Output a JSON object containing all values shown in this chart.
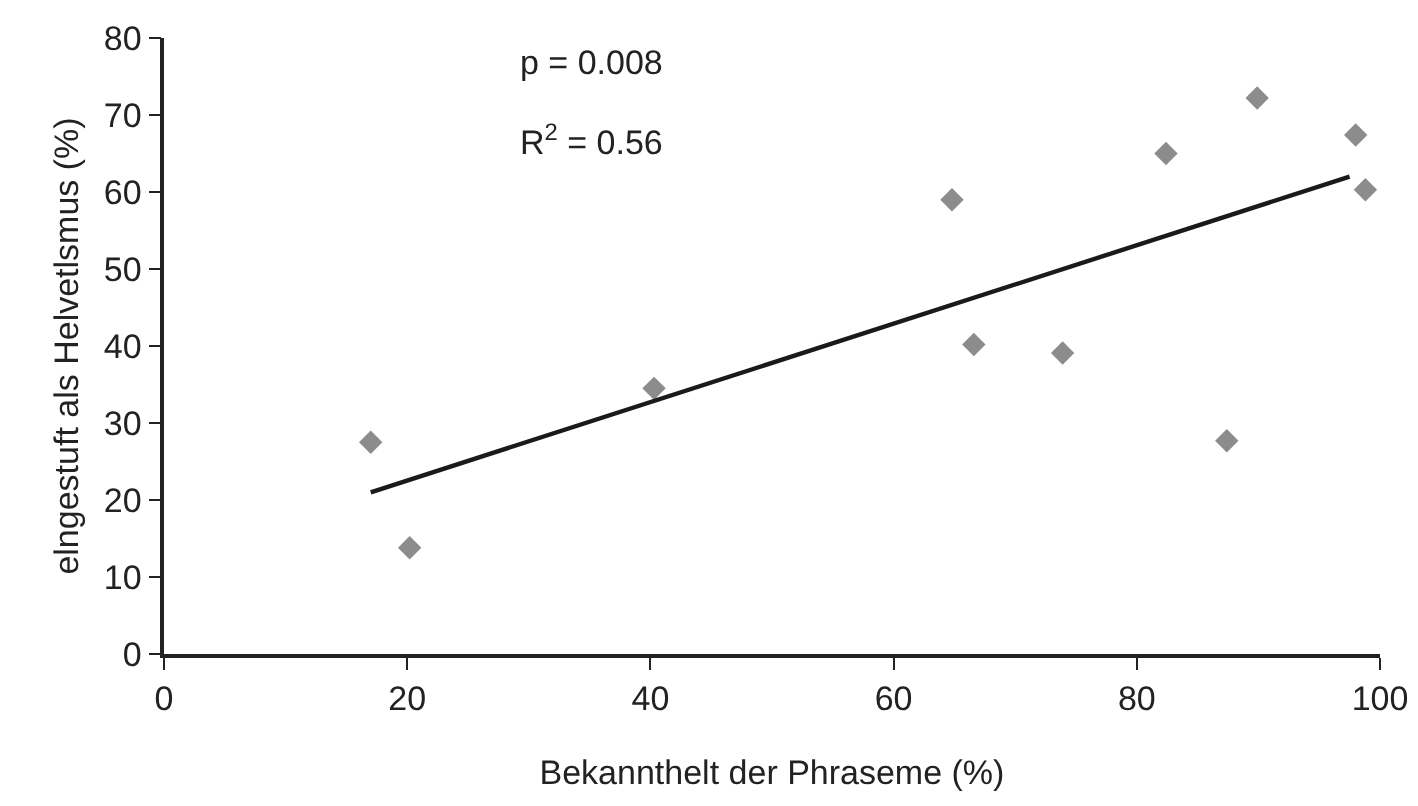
{
  "chart_data": {
    "type": "scatter",
    "xlabel": "Bekannthelt der Phraseme (%)",
    "ylabel": "elngestuft als Helvetlsmus (%)",
    "annotations": [
      "p = 0.008",
      "R$^{2}$ = 0.56"
    ],
    "xlim": [
      0,
      100
    ],
    "xticks": [
      0,
      20,
      40,
      60,
      80,
      100
    ],
    "ylim": [
      0,
      80
    ],
    "yticks": [
      0,
      10,
      20,
      30,
      40,
      50,
      60,
      70,
      80
    ],
    "grid": false,
    "marker": "diamond",
    "series": [
      {
        "color": "#8c8c8c",
        "x": [
          17,
          20.2,
          40.3,
          64.8,
          66.6,
          73.9,
          82.4,
          87.4,
          89.9,
          98,
          98.8
        ],
        "values": [
          27.5,
          13.8,
          34.5,
          59,
          40.2,
          39.1,
          65,
          27.7,
          72.2,
          67.4,
          60.3
        ]
      },
      {
        "type": "line",
        "color": "#1a1a1a",
        "marker": "none",
        "line_style": "solid",
        "x": [
          17,
          97.5
        ],
        "values": [
          21,
          62
        ]
      }
    ]
  }
}
